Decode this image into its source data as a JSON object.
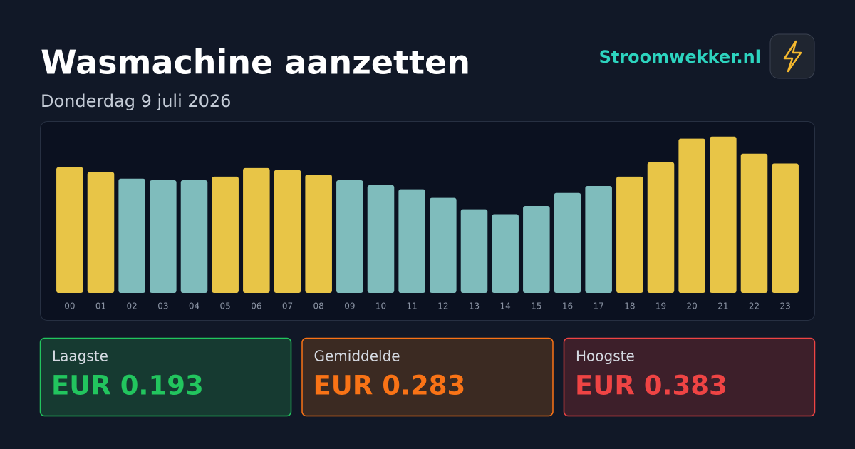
{
  "header": {
    "title": "Wasmachine aanzetten",
    "subtitle": "Donderdag 9 juli 2026",
    "brand": "Stroomwekker.nl"
  },
  "chart_data": {
    "type": "bar",
    "categories": [
      "00",
      "01",
      "02",
      "03",
      "04",
      "05",
      "06",
      "07",
      "08",
      "09",
      "10",
      "11",
      "12",
      "13",
      "14",
      "15",
      "16",
      "17",
      "18",
      "19",
      "20",
      "21",
      "22",
      "23"
    ],
    "values": [
      0.308,
      0.296,
      0.28,
      0.276,
      0.276,
      0.285,
      0.306,
      0.301,
      0.29,
      0.276,
      0.264,
      0.254,
      0.233,
      0.205,
      0.193,
      0.213,
      0.245,
      0.262,
      0.285,
      0.32,
      0.378,
      0.383,
      0.341,
      0.317
    ],
    "colors": [
      "#e8c547",
      "#e8c547",
      "#7fbcbc",
      "#7fbcbc",
      "#7fbcbc",
      "#e8c547",
      "#e8c547",
      "#e8c547",
      "#e8c547",
      "#7fbcbc",
      "#7fbcbc",
      "#7fbcbc",
      "#7fbcbc",
      "#7fbcbc",
      "#7fbcbc",
      "#7fbcbc",
      "#7fbcbc",
      "#7fbcbc",
      "#e8c547",
      "#e8c547",
      "#e8c547",
      "#e8c547",
      "#e8c547",
      "#e8c547"
    ],
    "ylim": [
      0,
      0.4
    ],
    "grid": false
  },
  "stats": [
    {
      "label": "Laagste",
      "value": "EUR 0.193"
    },
    {
      "label": "Gemiddelde",
      "value": "EUR 0.283"
    },
    {
      "label": "Hoogste",
      "value": "EUR 0.383"
    }
  ]
}
